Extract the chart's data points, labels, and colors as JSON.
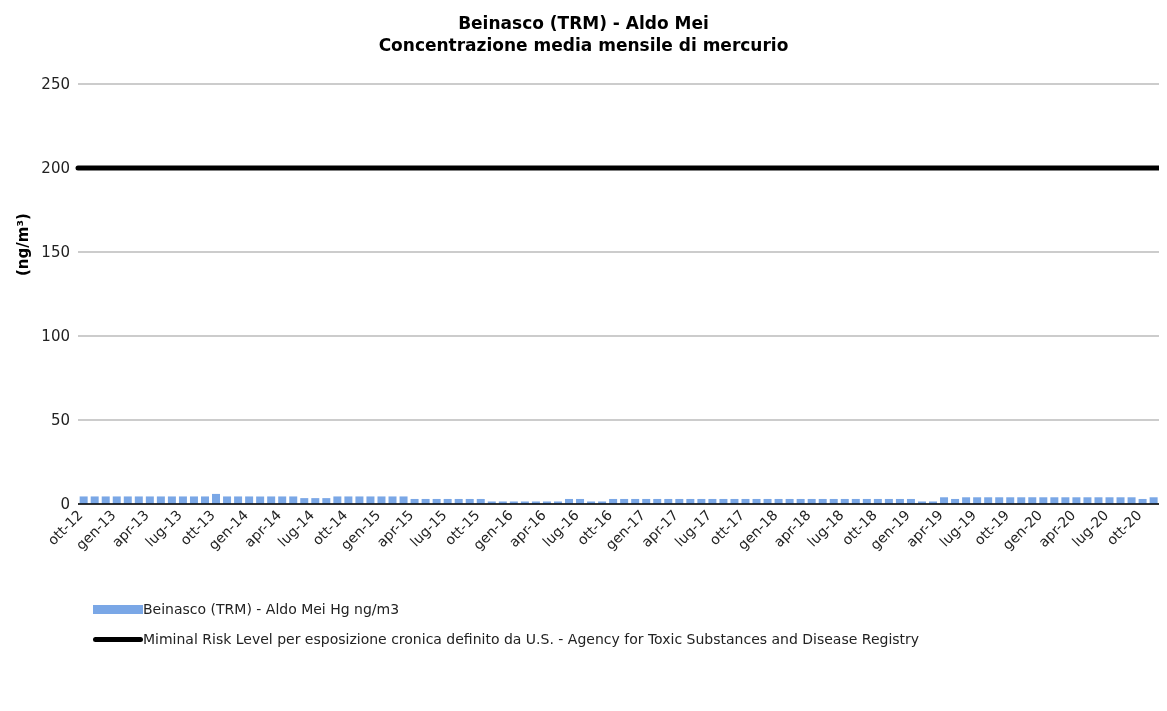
{
  "chart_data": {
    "type": "bar",
    "title": "Beinasco (TRM) - Aldo Mei",
    "subtitle": "Concentrazione media mensile di mercurio",
    "ylabel": "(ng/m³)",
    "categories": [
      "ott-12",
      null,
      null,
      "gen-13",
      null,
      null,
      "apr-13",
      null,
      null,
      "lug-13",
      null,
      null,
      "ott-13",
      null,
      null,
      "gen-14",
      null,
      null,
      "apr-14",
      null,
      null,
      "lug-14",
      null,
      null,
      "ott-14",
      null,
      null,
      "gen-15",
      null,
      null,
      "apr-15",
      null,
      null,
      "lug-15",
      null,
      null,
      "ott-15",
      null,
      null,
      "gen-16",
      null,
      null,
      "apr-16",
      null,
      null,
      "lug-16",
      null,
      null,
      "ott-16",
      null,
      null,
      "gen-17",
      null,
      null,
      "apr-17",
      null,
      null,
      "lug-17",
      null,
      null,
      "ott-17",
      null,
      null,
      "gen-18",
      null,
      null,
      "apr-18",
      null,
      null,
      "lug-18",
      null,
      null,
      "ott-18",
      null,
      null,
      "gen-19",
      null,
      null,
      "apr-19",
      null,
      null,
      "lug-19",
      null,
      null,
      "ott-19",
      null,
      null,
      "gen-20",
      null,
      null,
      "apr-20",
      null,
      null,
      "lug-20",
      null,
      null,
      "ott-20",
      null
    ],
    "series": [
      {
        "name": "Beinasco (TRM) - Aldo Mei Hg ng/m3",
        "color": "#7aa7e6",
        "values": [
          4.5,
          4.5,
          4.5,
          4.5,
          4.5,
          4.5,
          4.5,
          4.5,
          4.5,
          4.5,
          4.5,
          4.5,
          6,
          4.5,
          4.5,
          4.5,
          4.5,
          4.5,
          4.5,
          4.5,
          3.5,
          3.5,
          3.5,
          4.5,
          4.5,
          4.5,
          4.5,
          4.5,
          4.5,
          4.5,
          3,
          3,
          3,
          3,
          3,
          3,
          3,
          1.5,
          1.5,
          1.5,
          1.5,
          1.5,
          1.5,
          1.5,
          3,
          3,
          1.5,
          1.5,
          3,
          3,
          3,
          3,
          3,
          3,
          3,
          3,
          3,
          3,
          3,
          3,
          3,
          3,
          3,
          3,
          3,
          3,
          3,
          3,
          3,
          3,
          3,
          3,
          3,
          3,
          3,
          3,
          1.5,
          1.5,
          4,
          3,
          4,
          4,
          4,
          4,
          4,
          4,
          4,
          4,
          4,
          4,
          4,
          4,
          4,
          4,
          4,
          4,
          3,
          4
        ]
      }
    ],
    "ref_lines": [
      {
        "axis": "y",
        "value": 200,
        "label": "Miminal Risk Level per esposizione cronica definito da U.S. - Agency for Toxic Substances and Disease Registry",
        "color": "#000000"
      }
    ],
    "ylim": [
      0,
      250
    ],
    "yticks": [
      0,
      50,
      100,
      150,
      200,
      250
    ],
    "grid": "y",
    "legend": "bottom"
  }
}
